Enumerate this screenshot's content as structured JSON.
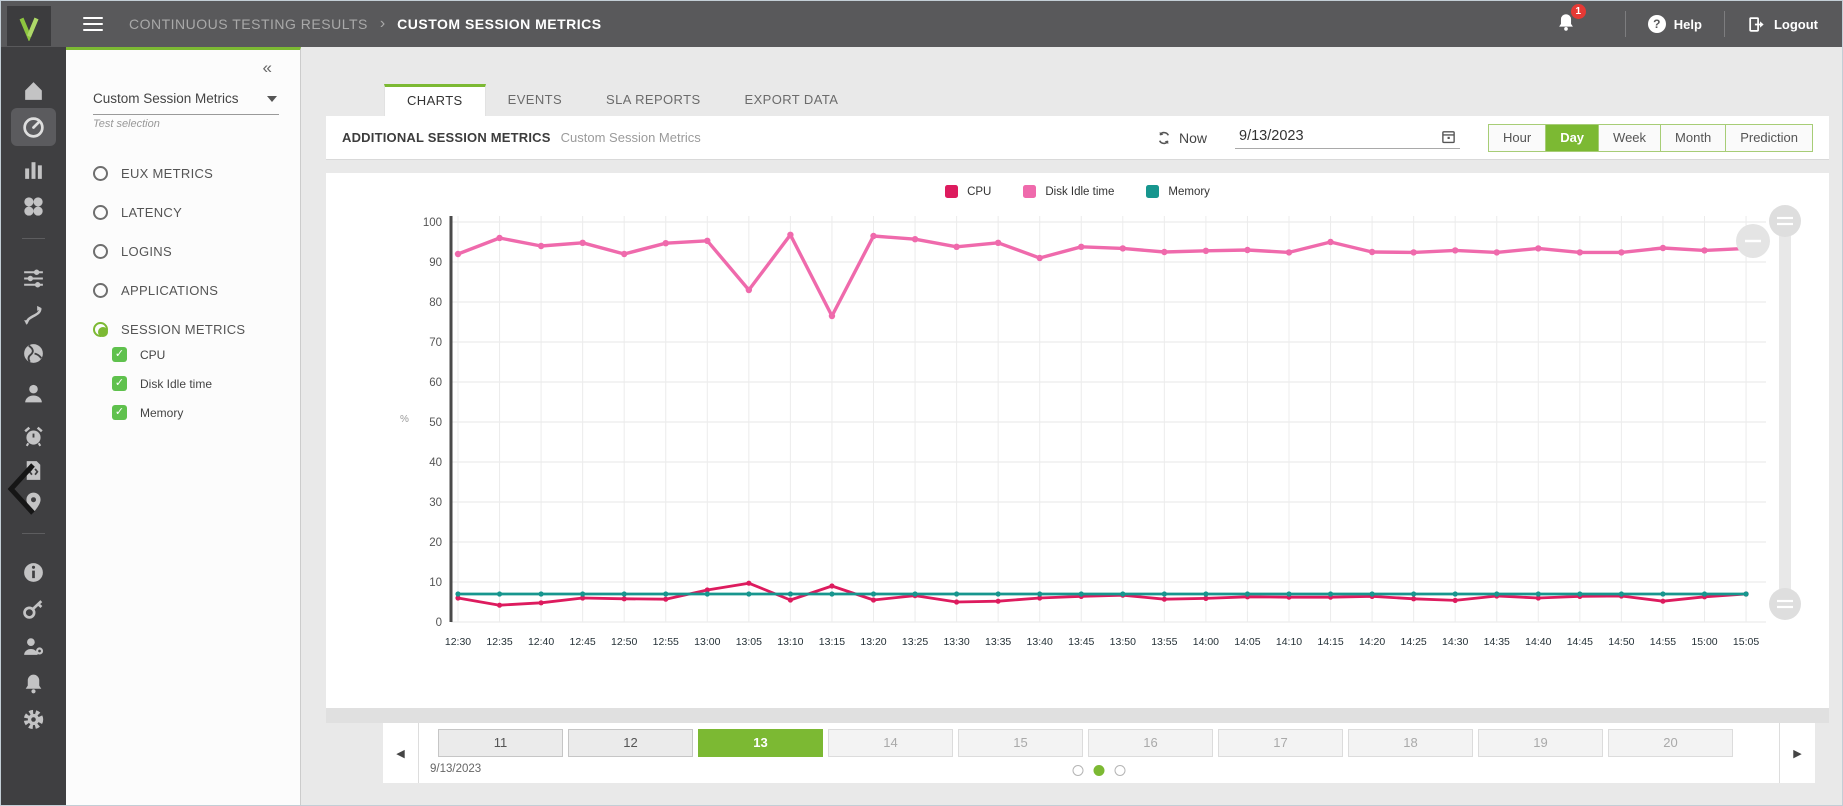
{
  "colors": {
    "accent": "#7cb933",
    "check": "#5fc14d",
    "badge": "#e53935",
    "cpu": "#dd1b5e",
    "disk": "#ef6aac",
    "memory": "#17968e"
  },
  "topbar": {
    "breadcrumb_parent": "CONTINUOUS TESTING RESULTS",
    "breadcrumb_separator": "›",
    "breadcrumb_current": "CUSTOM SESSION METRICS",
    "notification_count": "1",
    "help_label": "Help",
    "logout_label": "Logout"
  },
  "rail": {
    "items": [
      "home",
      "dashboard-gauge",
      "bar-chart",
      "apps-grid",
      "divider",
      "sliders",
      "workflow",
      "globe",
      "user",
      "alarm",
      "script-document",
      "location-pin",
      "divider",
      "info",
      "key",
      "user-settings",
      "notification-bell",
      "settings-gear"
    ],
    "active": "dashboard-gauge"
  },
  "sidebar": {
    "collapse_glyph": "«",
    "select_value": "Custom Session Metrics",
    "select_caption": "Test selection",
    "groups": [
      {
        "label": "EUX METRICS",
        "selected": false
      },
      {
        "label": "LATENCY",
        "selected": false
      },
      {
        "label": "LOGINS",
        "selected": false
      },
      {
        "label": "APPLICATIONS",
        "selected": false
      },
      {
        "label": "SESSION METRICS",
        "selected": true
      }
    ],
    "metrics": [
      {
        "label": "CPU",
        "checked": true
      },
      {
        "label": "Disk Idle time",
        "checked": true
      },
      {
        "label": "Memory",
        "checked": true
      }
    ]
  },
  "main": {
    "tabs": [
      {
        "label": "CHARTS",
        "active": true
      },
      {
        "label": "EVENTS",
        "active": false
      },
      {
        "label": "SLA REPORTS",
        "active": false
      },
      {
        "label": "EXPORT DATA",
        "active": false
      }
    ],
    "header": {
      "title": "ADDITIONAL SESSION METRICS",
      "subtitle": "Custom Session Metrics",
      "now_label": "Now",
      "date_value": "9/13/2023",
      "ranges": [
        {
          "label": "Hour",
          "active": false
        },
        {
          "label": "Day",
          "active": true
        },
        {
          "label": "Week",
          "active": false
        },
        {
          "label": "Month",
          "active": false
        },
        {
          "label": "Prediction",
          "active": false
        }
      ]
    }
  },
  "chart_data": {
    "type": "line",
    "title": "ADDITIONAL SESSION METRICS",
    "xlabel": "",
    "ylabel": "%",
    "ylim": [
      0,
      100
    ],
    "ytick_step": 10,
    "grid": true,
    "legend_position": "top",
    "x": [
      "12:30",
      "12:35",
      "12:40",
      "12:45",
      "12:50",
      "12:55",
      "13:00",
      "13:05",
      "13:10",
      "13:15",
      "13:20",
      "13:25",
      "13:30",
      "13:35",
      "13:40",
      "13:45",
      "13:50",
      "13:55",
      "14:00",
      "14:05",
      "14:10",
      "14:15",
      "14:20",
      "14:25",
      "14:30",
      "14:35",
      "14:40",
      "14:45",
      "14:50",
      "14:55",
      "15:00",
      "15:05"
    ],
    "series": [
      {
        "name": "CPU",
        "color": "#dd1b5e",
        "values": [
          6.0,
          4.2,
          4.8,
          6.0,
          5.8,
          5.7,
          8.0,
          9.7,
          5.5,
          9.0,
          5.5,
          6.6,
          5.0,
          5.2,
          6.0,
          6.4,
          6.7,
          5.7,
          5.9,
          6.3,
          6.2,
          6.2,
          6.4,
          5.8,
          5.4,
          6.5,
          6.0,
          6.4,
          6.5,
          5.2,
          6.3,
          7.0
        ]
      },
      {
        "name": "Disk Idle time",
        "color": "#ef6aac",
        "values": [
          92,
          96,
          94,
          94.8,
          92,
          94.7,
          95.3,
          83,
          96.8,
          76.5,
          96.5,
          95.7,
          93.8,
          94.8,
          91,
          93.8,
          93.4,
          92.5,
          92.8,
          93,
          92.4,
          95,
          92.5,
          92.4,
          92.9,
          92.4,
          93.4,
          92.4,
          92.4,
          93.5,
          92.9,
          93.4
        ]
      },
      {
        "name": "Memory",
        "color": "#17968e",
        "values": [
          7,
          7,
          7,
          7,
          7,
          7,
          7,
          7,
          7,
          7,
          7,
          7,
          7,
          7,
          7,
          7,
          7,
          7,
          7,
          7,
          7,
          7,
          7,
          7,
          7,
          7,
          7,
          7,
          7,
          7,
          7,
          7
        ]
      }
    ]
  },
  "pagination": {
    "days": [
      {
        "label": "11",
        "state": "past"
      },
      {
        "label": "12",
        "state": "past"
      },
      {
        "label": "13",
        "state": "active"
      },
      {
        "label": "14",
        "state": "future"
      },
      {
        "label": "15",
        "state": "future"
      },
      {
        "label": "16",
        "state": "future"
      },
      {
        "label": "17",
        "state": "future"
      },
      {
        "label": "18",
        "state": "future"
      },
      {
        "label": "19",
        "state": "future"
      },
      {
        "label": "20",
        "state": "future"
      }
    ],
    "date_label": "9/13/2023",
    "dots": [
      "inactive",
      "active",
      "inactive"
    ]
  }
}
